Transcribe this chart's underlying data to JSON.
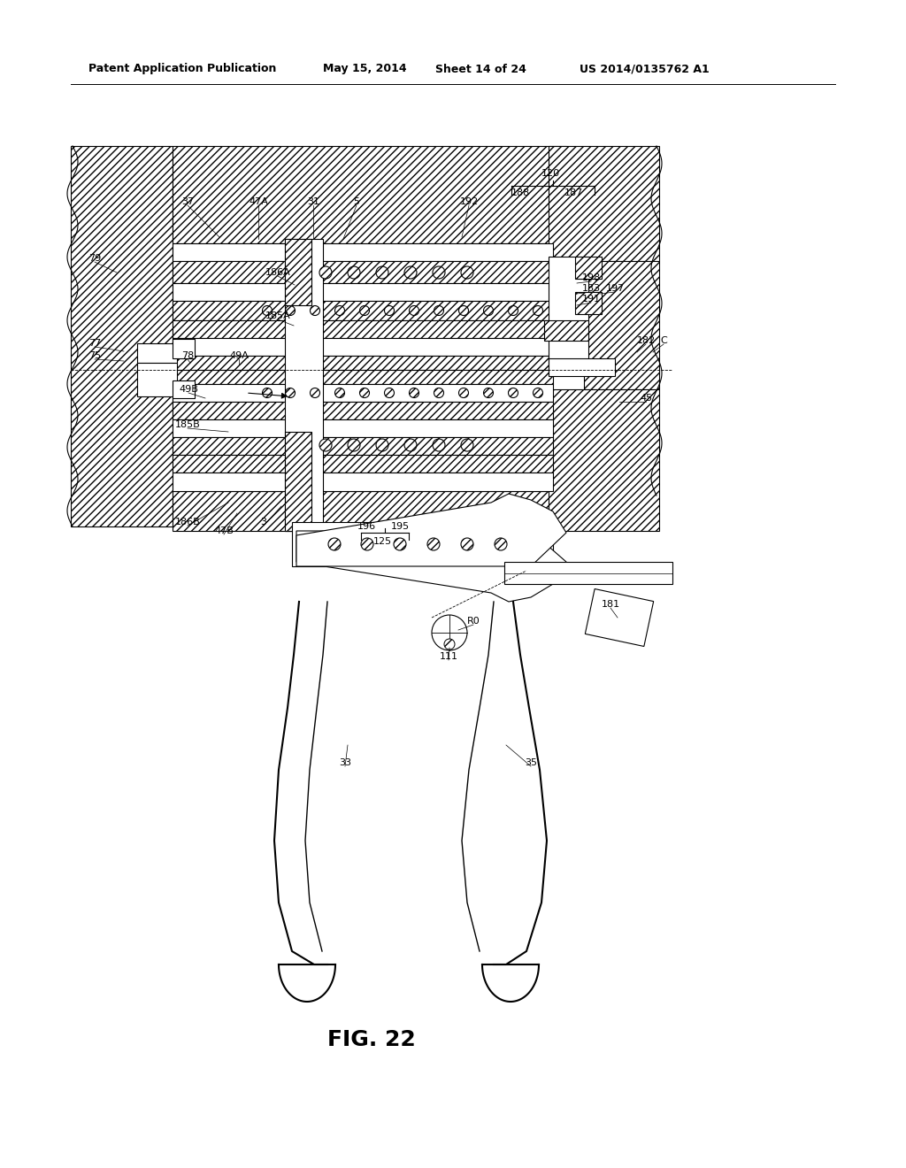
{
  "bg_color": "#ffffff",
  "header_left": "Patent Application Publication",
  "header_mid1": "May 15, 2014",
  "header_mid2": "Sheet 14 of 24",
  "header_right": "US 2014/0135762 A1",
  "fig_label": "FIG. 22"
}
